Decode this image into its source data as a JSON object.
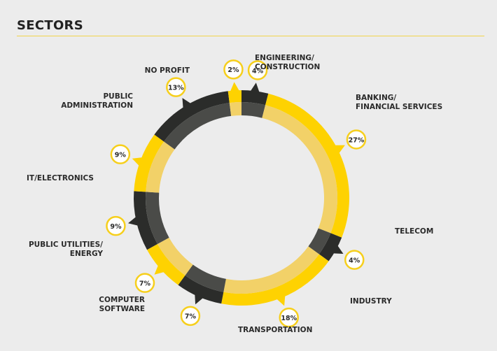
{
  "page": {
    "title": "SECTORS"
  },
  "colors": {
    "yellow": "#fed201",
    "yellow_inner": "#f2d168",
    "dark": "#2b2c2a",
    "dark_inner": "#4a4b48",
    "badge_border": "#f6cf1c",
    "badge_fill": "#ffffff",
    "text": "#2a2a2a"
  },
  "chart_data": {
    "type": "pie",
    "variant": "donut",
    "title": "SECTORS",
    "slices": [
      {
        "label": "ENGINEERING/ CONSTRUCTION",
        "value": 4,
        "value_label": "4%",
        "color": "dark"
      },
      {
        "label": "BANKING/ FINANCIAL SERVICES",
        "value": 27,
        "value_label": "27%",
        "color": "yellow"
      },
      {
        "label": "TELECOM",
        "value": 4,
        "value_label": "4%",
        "color": "dark"
      },
      {
        "label": "INDUSTRY",
        "value": 18,
        "value_label": "18%",
        "color": "yellow"
      },
      {
        "label": "TRANSPORTATION",
        "value": 7,
        "value_label": "7%",
        "color": "dark"
      },
      {
        "label": "COMPUTER SOFTWARE",
        "value": 7,
        "value_label": "7%",
        "color": "yellow"
      },
      {
        "label": "PUBLIC UTILITIES/ ENERGY",
        "value": 9,
        "value_label": "9%",
        "color": "dark"
      },
      {
        "label": "IT/ELECTRONICS",
        "value": 9,
        "value_label": "9%",
        "color": "yellow"
      },
      {
        "label": "PUBLIC ADMINISTRATION",
        "value": 13,
        "value_label": "13%",
        "color": "dark"
      },
      {
        "label": "NO PROFIT",
        "value": 2,
        "value_label": "2%",
        "color": "yellow"
      }
    ]
  }
}
